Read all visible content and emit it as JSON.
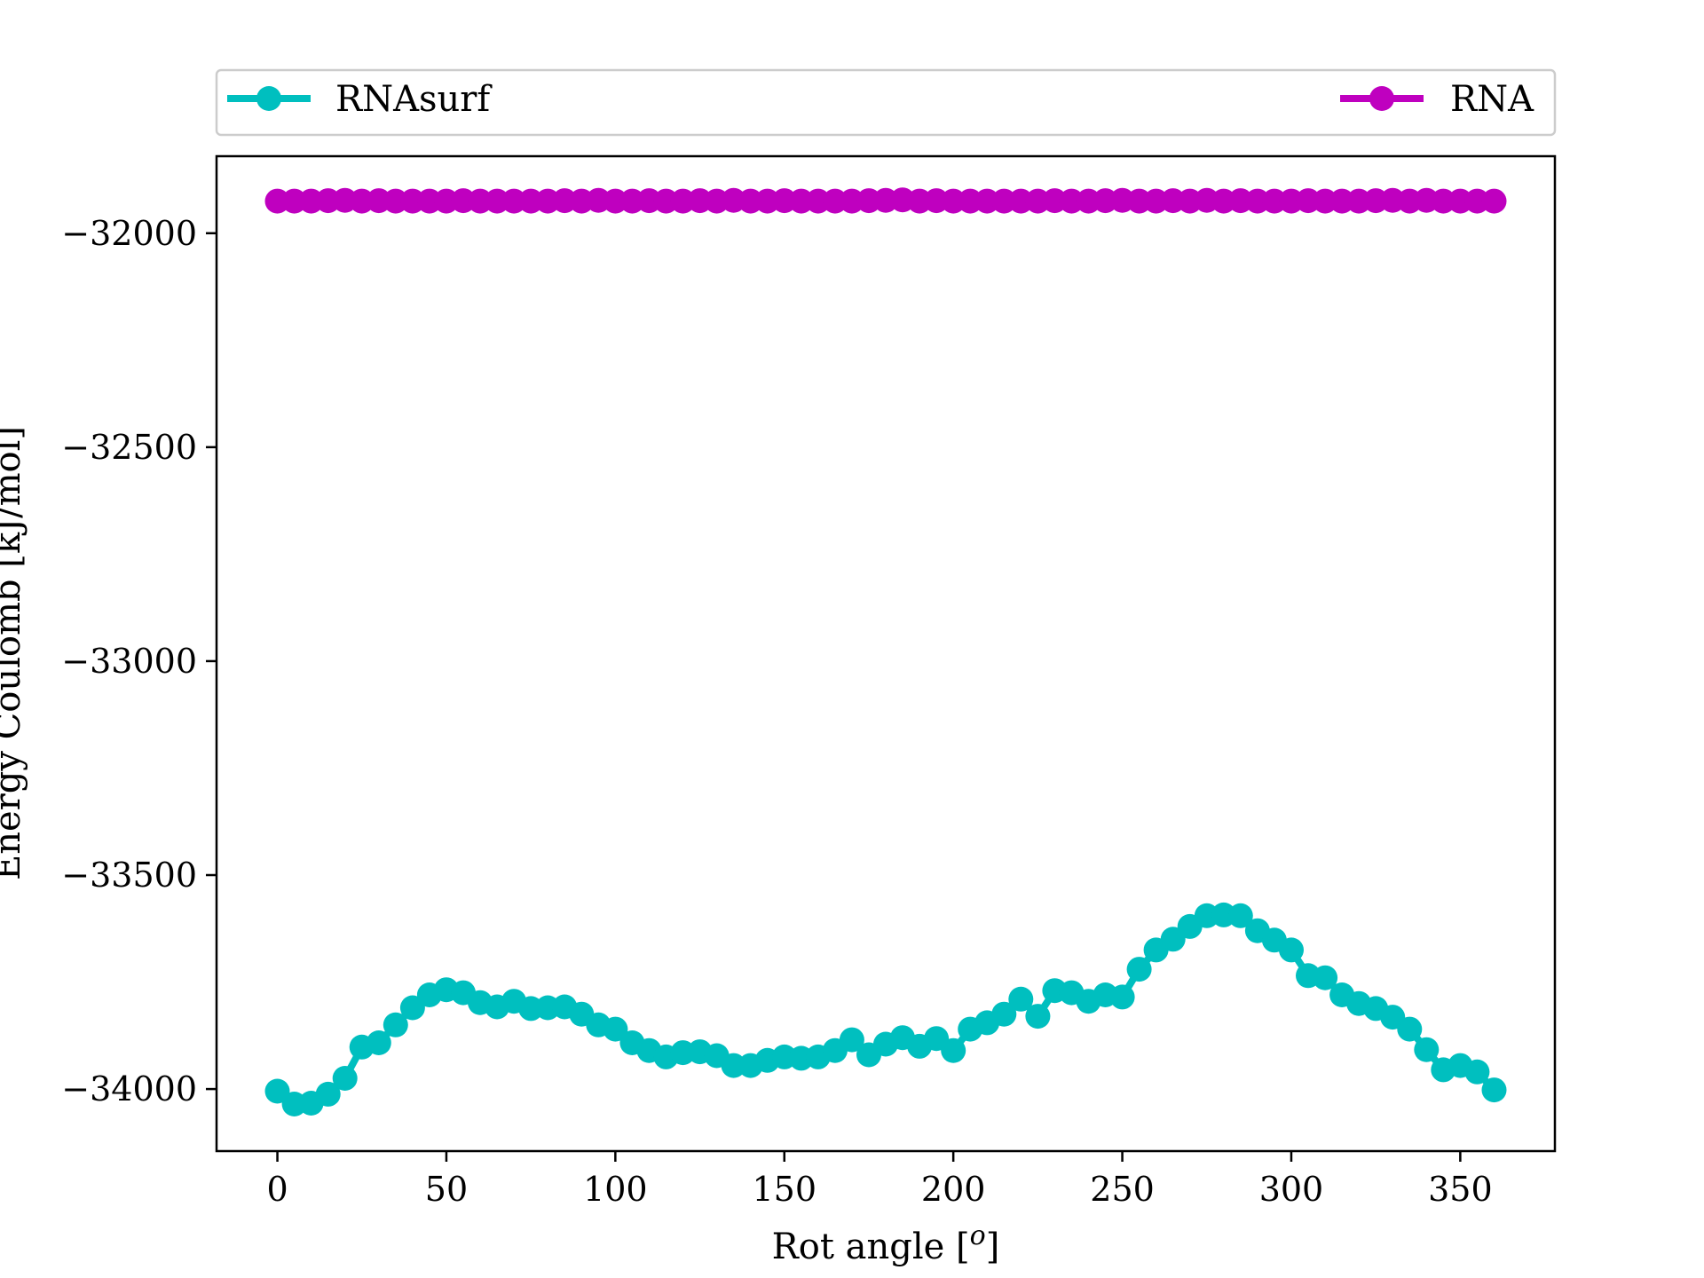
{
  "chart_data": {
    "type": "line",
    "xlabel": "Rot angle [",
    "xlabel_degree_symbol": "o",
    "xlabel_close": "]",
    "ylabel": "Energy Coulomb [kJ/mol]",
    "xlim": [
      -18,
      378
    ],
    "ylim": [
      -34145,
      -31820
    ],
    "xticks": [
      0,
      50,
      100,
      150,
      200,
      250,
      300,
      350
    ],
    "yticks": [
      -32000,
      -32500,
      -33000,
      -33500,
      -34000
    ],
    "grid": false,
    "legend": {
      "placement": "top-outside",
      "entries": [
        "RNAsurf",
        "RNA"
      ]
    },
    "series": [
      {
        "name": "RNAsurf",
        "color": "#00bfbf",
        "marker": "circle",
        "x": [
          0,
          5,
          10,
          15,
          20,
          25,
          30,
          35,
          40,
          45,
          50,
          55,
          60,
          65,
          70,
          75,
          80,
          85,
          90,
          95,
          100,
          105,
          110,
          115,
          120,
          125,
          130,
          135,
          140,
          145,
          150,
          155,
          160,
          165,
          170,
          175,
          180,
          185,
          190,
          195,
          200,
          205,
          210,
          215,
          220,
          225,
          230,
          235,
          240,
          245,
          250,
          255,
          260,
          265,
          270,
          275,
          280,
          285,
          290,
          295,
          300,
          305,
          310,
          315,
          320,
          325,
          330,
          335,
          340,
          345,
          350,
          355,
          360
        ],
        "values": [
          -34005,
          -34035,
          -34033,
          -34012,
          -33975,
          -33902,
          -33892,
          -33850,
          -33810,
          -33780,
          -33768,
          -33775,
          -33798,
          -33808,
          -33795,
          -33812,
          -33810,
          -33808,
          -33825,
          -33850,
          -33860,
          -33892,
          -33910,
          -33925,
          -33915,
          -33913,
          -33922,
          -33945,
          -33945,
          -33933,
          -33925,
          -33928,
          -33925,
          -33910,
          -33885,
          -33920,
          -33895,
          -33880,
          -33900,
          -33882,
          -33910,
          -33860,
          -33845,
          -33825,
          -33790,
          -33830,
          -33770,
          -33775,
          -33795,
          -33780,
          -33785,
          -33720,
          -33675,
          -33650,
          -33620,
          -33595,
          -33593,
          -33595,
          -33630,
          -33652,
          -33675,
          -33735,
          -33740,
          -33780,
          -33800,
          -33812,
          -33832,
          -33860,
          -33908,
          -33955,
          -33945,
          -33960,
          -34002
        ]
      },
      {
        "name": "RNA",
        "color": "#bf00bf",
        "marker": "circle",
        "x": [
          0,
          5,
          10,
          15,
          20,
          25,
          30,
          35,
          40,
          45,
          50,
          55,
          60,
          65,
          70,
          75,
          80,
          85,
          90,
          95,
          100,
          105,
          110,
          115,
          120,
          125,
          130,
          135,
          140,
          145,
          150,
          155,
          160,
          165,
          170,
          175,
          180,
          185,
          190,
          195,
          200,
          205,
          210,
          215,
          220,
          225,
          230,
          235,
          240,
          245,
          250,
          255,
          260,
          265,
          270,
          275,
          280,
          285,
          290,
          295,
          300,
          305,
          310,
          315,
          320,
          325,
          330,
          335,
          340,
          345,
          350,
          355,
          360
        ],
        "values": [
          -31925,
          -31925,
          -31925,
          -31924,
          -31923,
          -31925,
          -31924,
          -31925,
          -31925,
          -31925,
          -31925,
          -31924,
          -31925,
          -31925,
          -31925,
          -31925,
          -31925,
          -31924,
          -31925,
          -31923,
          -31925,
          -31925,
          -31924,
          -31925,
          -31925,
          -31924,
          -31925,
          -31923,
          -31925,
          -31925,
          -31924,
          -31925,
          -31925,
          -31925,
          -31925,
          -31924,
          -31923,
          -31922,
          -31925,
          -31924,
          -31925,
          -31925,
          -31925,
          -31925,
          -31925,
          -31925,
          -31924,
          -31925,
          -31925,
          -31924,
          -31923,
          -31925,
          -31925,
          -31924,
          -31925,
          -31923,
          -31925,
          -31924,
          -31925,
          -31925,
          -31925,
          -31924,
          -31925,
          -31925,
          -31925,
          -31924,
          -31923,
          -31925,
          -31923,
          -31925,
          -31925,
          -31925,
          -31925
        ]
      }
    ]
  }
}
